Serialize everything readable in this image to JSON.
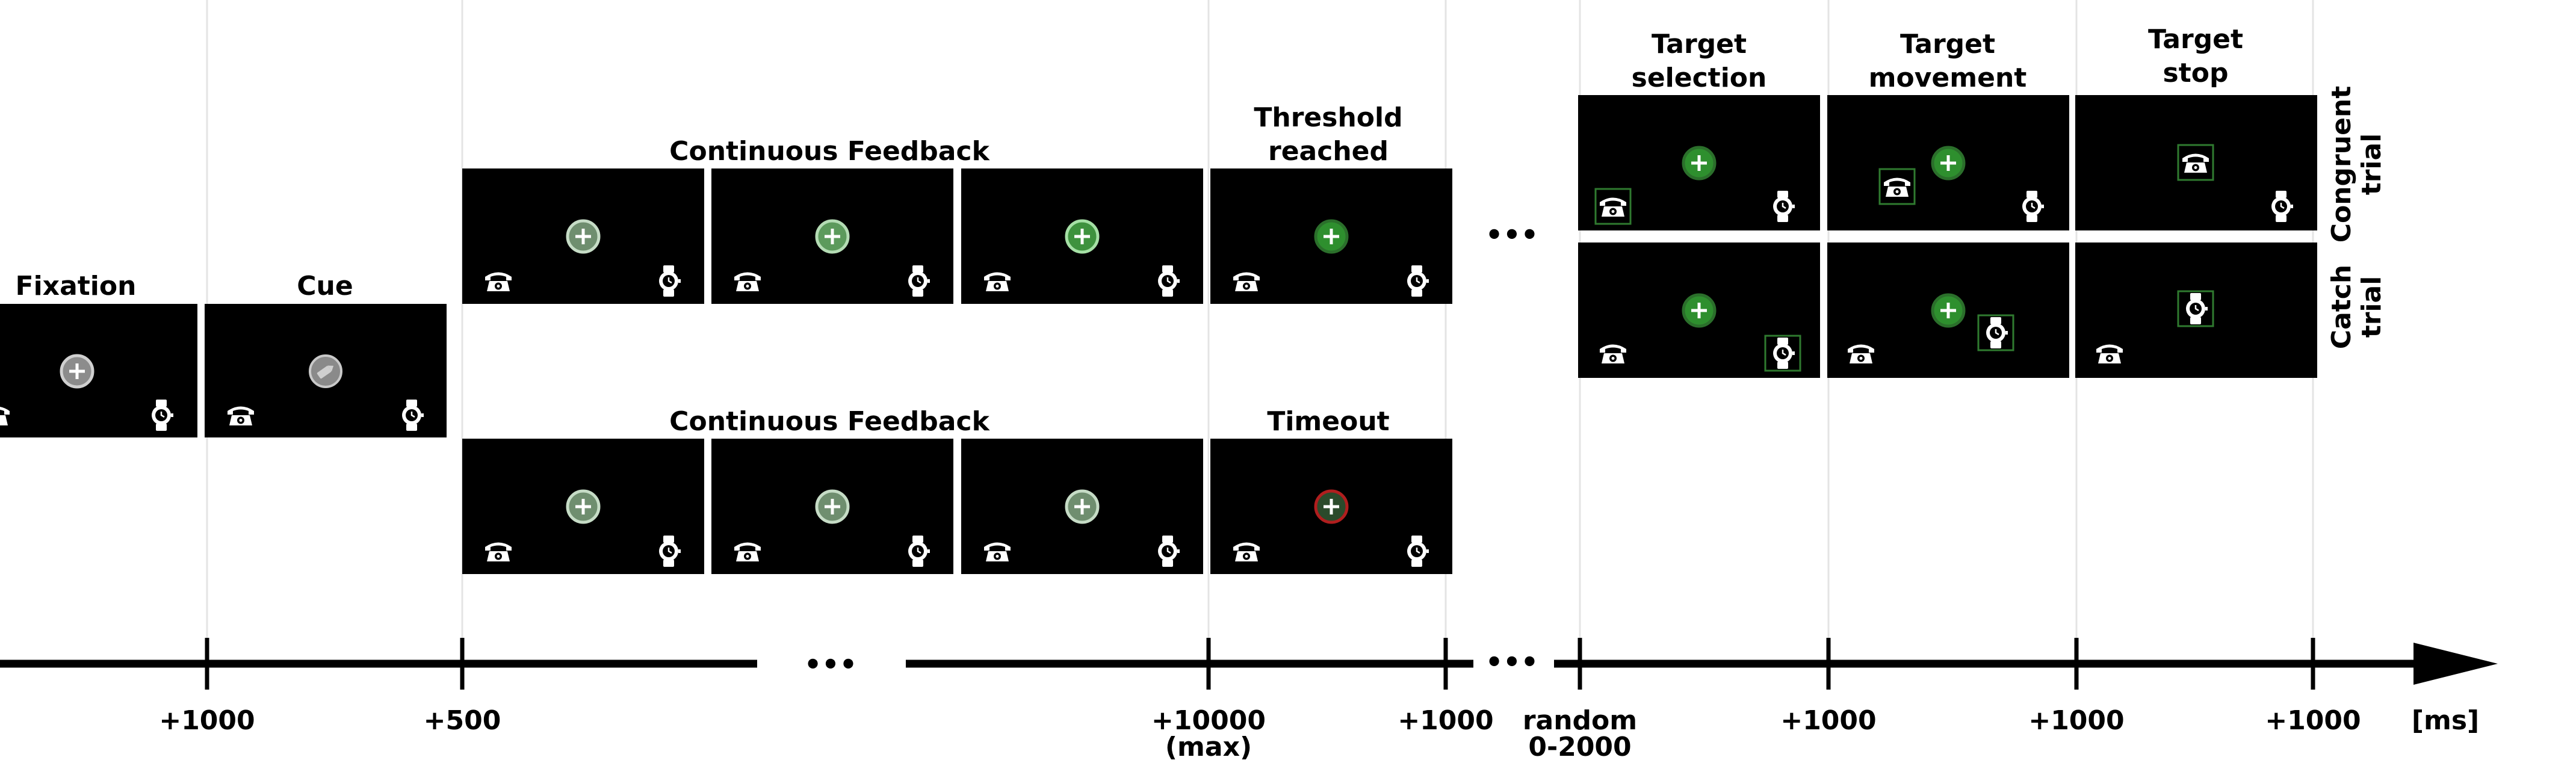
{
  "phases": {
    "fixation": "Fixation",
    "cue": "Cue",
    "feedback_top": "Continuous Feedback",
    "feedback_bottom": "Continuous Feedback",
    "threshold_line1": "Threshold",
    "threshold_line2": "reached",
    "timeout": "Timeout",
    "selection_line1": "Target",
    "selection_line2": "selection",
    "movement_line1": "Target",
    "movement_line2": "movement",
    "stop_line1": "Target",
    "stop_line2": "stop"
  },
  "trial_types": {
    "congruent_line1": "Congruent",
    "congruent_line2": "trial",
    "catch_line1": "Catch",
    "catch_line2": "trial"
  },
  "timeline": {
    "ticks": [
      {
        "label": "+1000",
        "sub": ""
      },
      {
        "label": "+500",
        "sub": ""
      },
      {
        "label": "+10000",
        "sub": "(max)"
      },
      {
        "label": "+1000",
        "sub": ""
      },
      {
        "label": "random",
        "sub": "0-2000"
      },
      {
        "label": "+1000",
        "sub": ""
      },
      {
        "label": "+1000",
        "sub": ""
      },
      {
        "label": "+1000",
        "sub": ""
      }
    ],
    "unit": "[ms]",
    "ellipsis": "•••"
  },
  "colors": {
    "screen": "#000000",
    "fixation_gray": "#8c8c8c",
    "feedback_green": "#2f8a2f",
    "timeout_red": "#b01e1e",
    "target_box": "#2f7a2f",
    "grid": "#e4e4e4"
  },
  "icons": {
    "left_object": "telephone-icon",
    "right_object": "wristwatch-icon",
    "cue_symbol": "pencil-icon",
    "center_symbol": "plus-icon"
  }
}
